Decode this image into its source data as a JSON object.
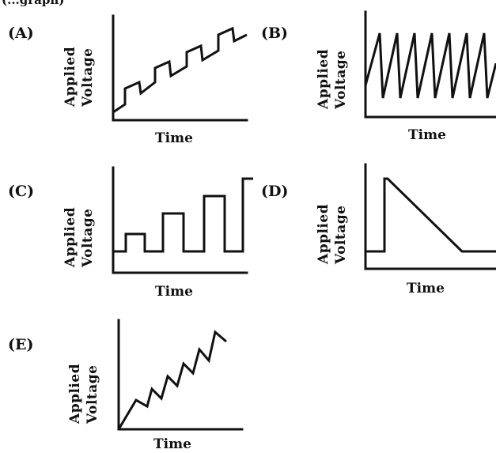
{
  "header_fragment": "(...graph)",
  "panels": [
    {
      "letter": "(A)",
      "ylabel_line1": "Applied",
      "ylabel_line2": "Voltage",
      "xlabel": "Time",
      "waveform": "rising staircase"
    },
    {
      "letter": "(B)",
      "ylabel_line1": "Applied",
      "ylabel_line2": "Voltage",
      "xlabel": "Time",
      "waveform": "sawtooth"
    },
    {
      "letter": "(C)",
      "ylabel_line1": "Applied",
      "ylabel_line2": "Voltage",
      "xlabel": "Time",
      "waveform": "increasing pulses"
    },
    {
      "letter": "(D)",
      "ylabel_line1": "Applied",
      "ylabel_line2": "Voltage",
      "xlabel": "Time",
      "waveform": "step then linear decay"
    },
    {
      "letter": "(E)",
      "ylabel_line1": "Applied",
      "ylabel_line2": "Voltage",
      "xlabel": "Time",
      "waveform": "rising zigzag"
    }
  ]
}
